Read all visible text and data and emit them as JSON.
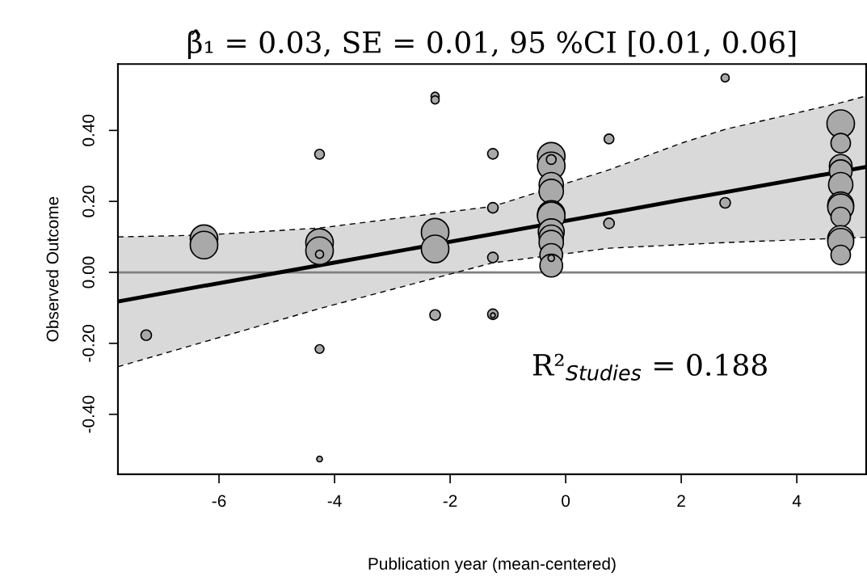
{
  "chart_data": {
    "type": "bubble",
    "title": "β̂₁ = 0.03, SE = 0.01, 95 %CI [0.01, 0.06]",
    "xlabel": "Publication year (mean-centered)",
    "ylabel": "Observed Outcome",
    "annotations": [
      "R²$_{Studies}$ = 0.188"
    ],
    "xlim": [
      -7.75,
      5.2
    ],
    "ylim": [
      -0.569,
      0.587
    ],
    "xticks": [
      -6,
      -4,
      -2,
      0,
      2,
      4
    ],
    "yticks": [
      {
        "value": -0.4,
        "label": "-0.40"
      },
      {
        "value": -0.2,
        "label": "-0.20"
      },
      {
        "value": 0,
        "label": "0.00"
      },
      {
        "value": 0.2,
        "label": "0.20"
      },
      {
        "value": 0.4,
        "label": "0.40"
      }
    ],
    "grid": false,
    "legend": false,
    "marker": "circle",
    "ref_lines": [
      {
        "axis": "y",
        "value": 0,
        "color": "#808080"
      }
    ],
    "series": [
      {
        "type": "line",
        "marker": "none",
        "color": "#000000",
        "line_style": "solid",
        "x": [
          -7.75,
          -6.26,
          -4.26,
          -1.26,
          0.75,
          2.0,
          2.76,
          4.76,
          5.2
        ],
        "values": [
          -0.082,
          -0.038,
          0.02,
          0.108,
          0.167,
          0.204,
          0.226,
          0.284,
          0.297
        ],
        "lower": [
          -0.266,
          -0.196,
          -0.102,
          0.027,
          0.068,
          0.078,
          0.084,
          0.095,
          0.099
        ],
        "upper": [
          0.1,
          0.105,
          0.125,
          0.186,
          0.289,
          0.364,
          0.403,
          0.478,
          0.497
        ]
      },
      {
        "type": "line",
        "marker": "none",
        "color": "#000000",
        "line_style": "dashed",
        "x": [
          -7.75,
          -6.26,
          -4.26,
          -1.26,
          0.75,
          2.0,
          2.76,
          5.2
        ],
        "values": [
          -0.266,
          -0.196,
          -0.102,
          0.027,
          0.068,
          0.078,
          0.084,
          0.099
        ]
      },
      {
        "type": "line",
        "marker": "none",
        "color": "#000000",
        "line_style": "dashed",
        "x": [
          -7.75,
          -6.26,
          -4.26,
          -1.26,
          0.75,
          2.0,
          2.76,
          4.76,
          5.2
        ],
        "values": [
          0.1,
          0.105,
          0.125,
          0.186,
          0.289,
          0.364,
          0.403,
          0.478,
          0.497
        ]
      },
      {
        "color": "#a9a9a9",
        "x": [
          -7.26,
          -6.26,
          -6.26,
          -4.26,
          -4.26,
          -4.26,
          -4.26,
          -4.26,
          -4.26,
          -2.26,
          -2.26,
          -2.26,
          -2.26,
          -2.26,
          -1.26,
          -1.26,
          -1.26,
          -1.26,
          -1.26,
          -0.25,
          -0.25,
          -0.25,
          -0.25,
          -0.25,
          -0.25,
          -0.25,
          -0.25,
          -0.25,
          -0.25,
          -0.25,
          -0.25,
          0.75,
          0.75,
          2.76,
          2.76,
          4.76,
          4.76,
          4.76,
          4.76,
          4.76,
          4.76,
          4.76,
          4.76,
          4.76,
          4.76,
          4.76,
          -0.25
        ],
        "values": [
          -0.177,
          0.095,
          0.077,
          0.333,
          0.084,
          0.061,
          0.051,
          -0.216,
          -0.526,
          0.496,
          0.486,
          0.113,
          0.066,
          -0.12,
          0.334,
          0.182,
          0.042,
          -0.118,
          -0.121,
          0.327,
          0.3,
          0.318,
          0.247,
          0.228,
          0.163,
          0.159,
          0.114,
          0.099,
          0.084,
          0.049,
          0.019,
          0.376,
          0.138,
          0.548,
          0.196,
          0.419,
          0.364,
          0.3,
          0.285,
          0.247,
          0.19,
          0.184,
          0.156,
          0.095,
          0.087,
          0.049,
          0.04
        ],
        "sizes": [
          0.146,
          1,
          1,
          0.125,
          1,
          1,
          0.087,
          0.1,
          0.042,
          0.087,
          0.087,
          1,
          1,
          0.146,
          0.146,
          0.146,
          0.146,
          0.146,
          0.031,
          1,
          1,
          0.125,
          0.78,
          0.78,
          1,
          1,
          0.89,
          0.78,
          0.78,
          0.68,
          0.68,
          0.125,
          0.146,
          0.087,
          0.146,
          1,
          0.5,
          0.68,
          0.68,
          0.78,
          0.89,
          0.89,
          0.5,
          0.89,
          0.89,
          0.5,
          0.055
        ]
      }
    ]
  }
}
